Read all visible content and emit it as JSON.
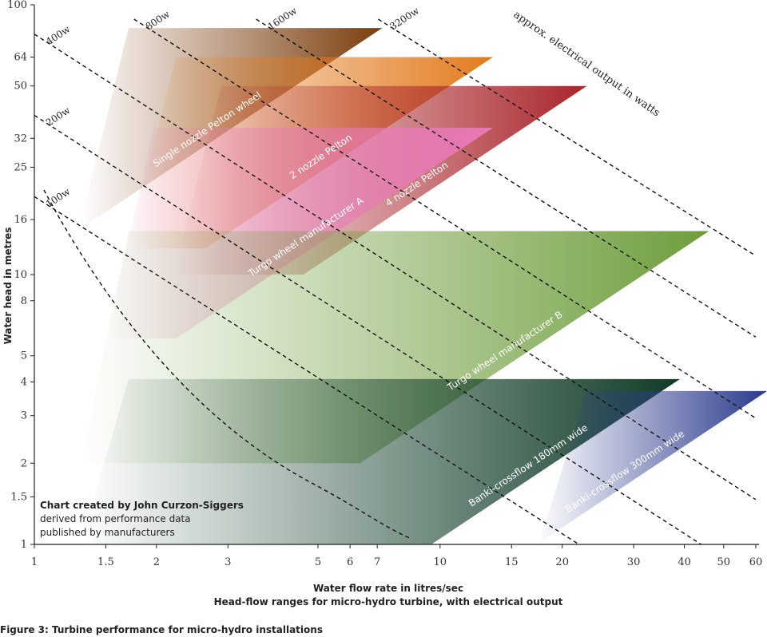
{
  "figure_caption": "Figure 3: Turbine performance for micro-hydro installations",
  "chart_data": {
    "type": "area",
    "title": "Head-flow ranges for micro-hydro turbine, with electrical output",
    "xlabel": "Water flow rate in litres/sec",
    "ylabel": "Water head in metres",
    "x_scale": "log",
    "y_scale": "log",
    "xlim": [
      1,
      60
    ],
    "ylim": [
      1,
      100
    ],
    "x_ticks": [
      "1",
      "1.5",
      "2",
      "3",
      "5",
      "6",
      "7",
      "10",
      "15",
      "20",
      "30",
      "40",
      "50",
      "60"
    ],
    "y_ticks": [
      "1",
      "1.5",
      "2",
      "3",
      "4",
      "5",
      "8",
      "10",
      "16",
      "25",
      "32",
      "50",
      "64",
      "100"
    ],
    "power_lines_note": "approx. electrical output in watts",
    "power_lines": [
      {
        "label": "100w",
        "constant": 22
      },
      {
        "label": "200w",
        "constant": 44
      },
      {
        "label": "400w",
        "constant": 88
      },
      {
        "label": "800w",
        "constant": 176
      },
      {
        "label": "1600w",
        "constant": 352
      },
      {
        "label": "3200w",
        "constant": 704
      }
    ],
    "turbines": [
      {
        "name": "Single nozzle Pelton wheel",
        "color": "#7b3d0c",
        "q_min": 1.3,
        "q_max": 7.2,
        "h_min": 15.5,
        "h_max": 82
      },
      {
        "name": "2 nozzle Pelton",
        "color": "#e27a1c",
        "q_min": 1.7,
        "q_max": 13.5,
        "h_min": 12.5,
        "h_max": 64
      },
      {
        "name": "4 nozzle Pelton",
        "color": "#a8252b",
        "q_min": 2.2,
        "q_max": 23,
        "h_min": 10,
        "h_max": 50
      },
      {
        "name": "Turgo wheel manufacturer A",
        "color": "#e87ab6",
        "q_min": 1.5,
        "q_max": 13.5,
        "h_min": 5.8,
        "h_max": 35
      },
      {
        "name": "Turgo wheel manufacturer B",
        "color": "#6e9d3c",
        "q_min": 1.3,
        "q_max": 46,
        "h_min": 2,
        "h_max": 14.5
      },
      {
        "name": "Banki-crossflow 180mm wide",
        "color": "#0f3b26",
        "q_min": 1.3,
        "q_max": 39,
        "h_min": 1,
        "h_max": 4.1
      },
      {
        "name": "Banki-crossflow 300mm wide",
        "color": "#2a3a8c",
        "q_min": 17.5,
        "q_max": 64,
        "h_min": 1,
        "h_max": 3.7
      }
    ],
    "credit": [
      "Chart created by John Curzon-Siggers",
      "derived from performance data",
      "published by manufacturers"
    ]
  }
}
